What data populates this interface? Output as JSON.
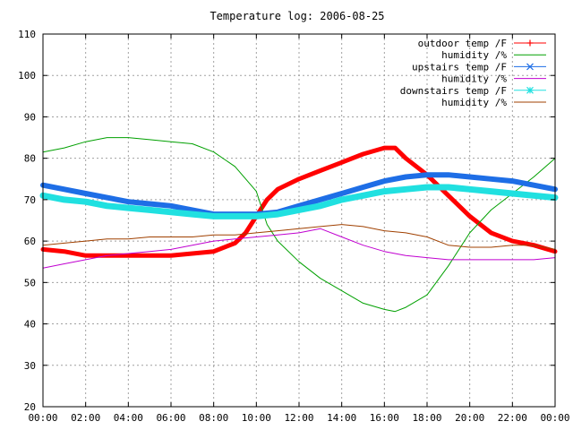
{
  "chart_data": {
    "type": "line",
    "title": "Temperature log: 2006-08-25",
    "xlabel": "",
    "ylabel": "",
    "x_ticks": [
      "00:00",
      "02:00",
      "04:00",
      "06:00",
      "08:00",
      "10:00",
      "12:00",
      "14:00",
      "16:00",
      "18:00",
      "20:00",
      "22:00",
      "00:00"
    ],
    "y_ticks": [
      20,
      30,
      40,
      50,
      60,
      70,
      80,
      90,
      100,
      110
    ],
    "xlim": [
      0,
      24
    ],
    "ylim": [
      20,
      110
    ],
    "grid": true,
    "legend_position": "top-right",
    "series": [
      {
        "name": "outdoor temp /F",
        "color": "#ff0000",
        "marker": "plus",
        "x": [
          0,
          1,
          2,
          3,
          4,
          5,
          6,
          7,
          8,
          9,
          9.5,
          10,
          10.5,
          11,
          12,
          13,
          14,
          15,
          16,
          16.5,
          17,
          18,
          19,
          20,
          21,
          22,
          23,
          24
        ],
        "values": [
          58,
          57.5,
          56.5,
          56.5,
          56.5,
          56.5,
          56.5,
          57,
          57.5,
          59.5,
          62,
          66,
          70,
          72.5,
          75,
          77,
          79,
          81,
          82.5,
          82.5,
          80,
          76,
          71,
          66,
          62,
          60,
          59,
          57.5
        ]
      },
      {
        "name": "humidity /%",
        "color": "#00a000",
        "marker": "none",
        "x": [
          0,
          1,
          2,
          3,
          4,
          5,
          6,
          7,
          8,
          9,
          10,
          10.5,
          11,
          12,
          13,
          14,
          15,
          16,
          16.5,
          17,
          18,
          19,
          20,
          21,
          22,
          23,
          24
        ],
        "values": [
          81.5,
          82.5,
          84,
          85,
          85,
          84.5,
          84,
          83.5,
          81.5,
          78,
          72,
          64,
          60,
          55,
          51,
          48,
          45,
          43.5,
          43,
          44,
          47,
          54,
          62,
          67.5,
          71.5,
          75.5,
          80
        ]
      },
      {
        "name": "upstairs temp /F",
        "color": "#1e6ee6",
        "marker": "cross",
        "x": [
          0,
          1,
          2,
          3,
          4,
          5,
          6,
          7,
          8,
          9,
          10,
          11,
          12,
          13,
          14,
          15,
          16,
          17,
          18,
          19,
          20,
          21,
          22,
          23,
          24
        ],
        "values": [
          73.5,
          72.5,
          71.5,
          70.5,
          69.5,
          69,
          68.5,
          67.5,
          66.5,
          66.5,
          66.5,
          67,
          68.5,
          70,
          71.5,
          73,
          74.5,
          75.5,
          76,
          76,
          75.5,
          75,
          74.5,
          73.5,
          72.5
        ]
      },
      {
        "name": "humidity /%",
        "color": "#c000d0",
        "marker": "none",
        "x": [
          0,
          1,
          2,
          3,
          4,
          5,
          6,
          7,
          8,
          9,
          10,
          11,
          12,
          13,
          14,
          15,
          16,
          17,
          18,
          19,
          20,
          21,
          22,
          23,
          24
        ],
        "values": [
          53.5,
          54.5,
          55.5,
          56.5,
          57,
          57.5,
          58,
          59,
          60,
          60.5,
          61,
          61.5,
          62,
          63,
          61,
          59,
          57.5,
          56.5,
          56,
          55.5,
          55.5,
          55.5,
          55.5,
          55.5,
          56
        ]
      },
      {
        "name": "downstairs temp /F",
        "color": "#20e0e0",
        "marker": "star",
        "x": [
          0,
          1,
          2,
          3,
          4,
          5,
          6,
          7,
          8,
          9,
          10,
          11,
          12,
          13,
          14,
          15,
          16,
          17,
          18,
          19,
          20,
          21,
          22,
          23,
          24
        ],
        "values": [
          71,
          70,
          69.5,
          68.5,
          68,
          67.5,
          67,
          66.5,
          66,
          66,
          66,
          66.5,
          67.5,
          68.5,
          70,
          71,
          72,
          72.5,
          73,
          73,
          72.5,
          72,
          71.5,
          71,
          70.5
        ]
      },
      {
        "name": "humidity /%",
        "color": "#a04000",
        "marker": "none",
        "x": [
          0,
          1,
          2,
          3,
          4,
          5,
          6,
          7,
          8,
          9,
          10,
          11,
          12,
          13,
          14,
          15,
          16,
          17,
          18,
          19,
          20,
          21,
          22,
          23,
          24
        ],
        "values": [
          59,
          59.5,
          60,
          60.5,
          60.5,
          61,
          61,
          61,
          61.5,
          61.5,
          62,
          62.5,
          63,
          63.5,
          64,
          63.5,
          62.5,
          62,
          61,
          59,
          58.5,
          58.5,
          59,
          59,
          58
        ]
      }
    ]
  }
}
